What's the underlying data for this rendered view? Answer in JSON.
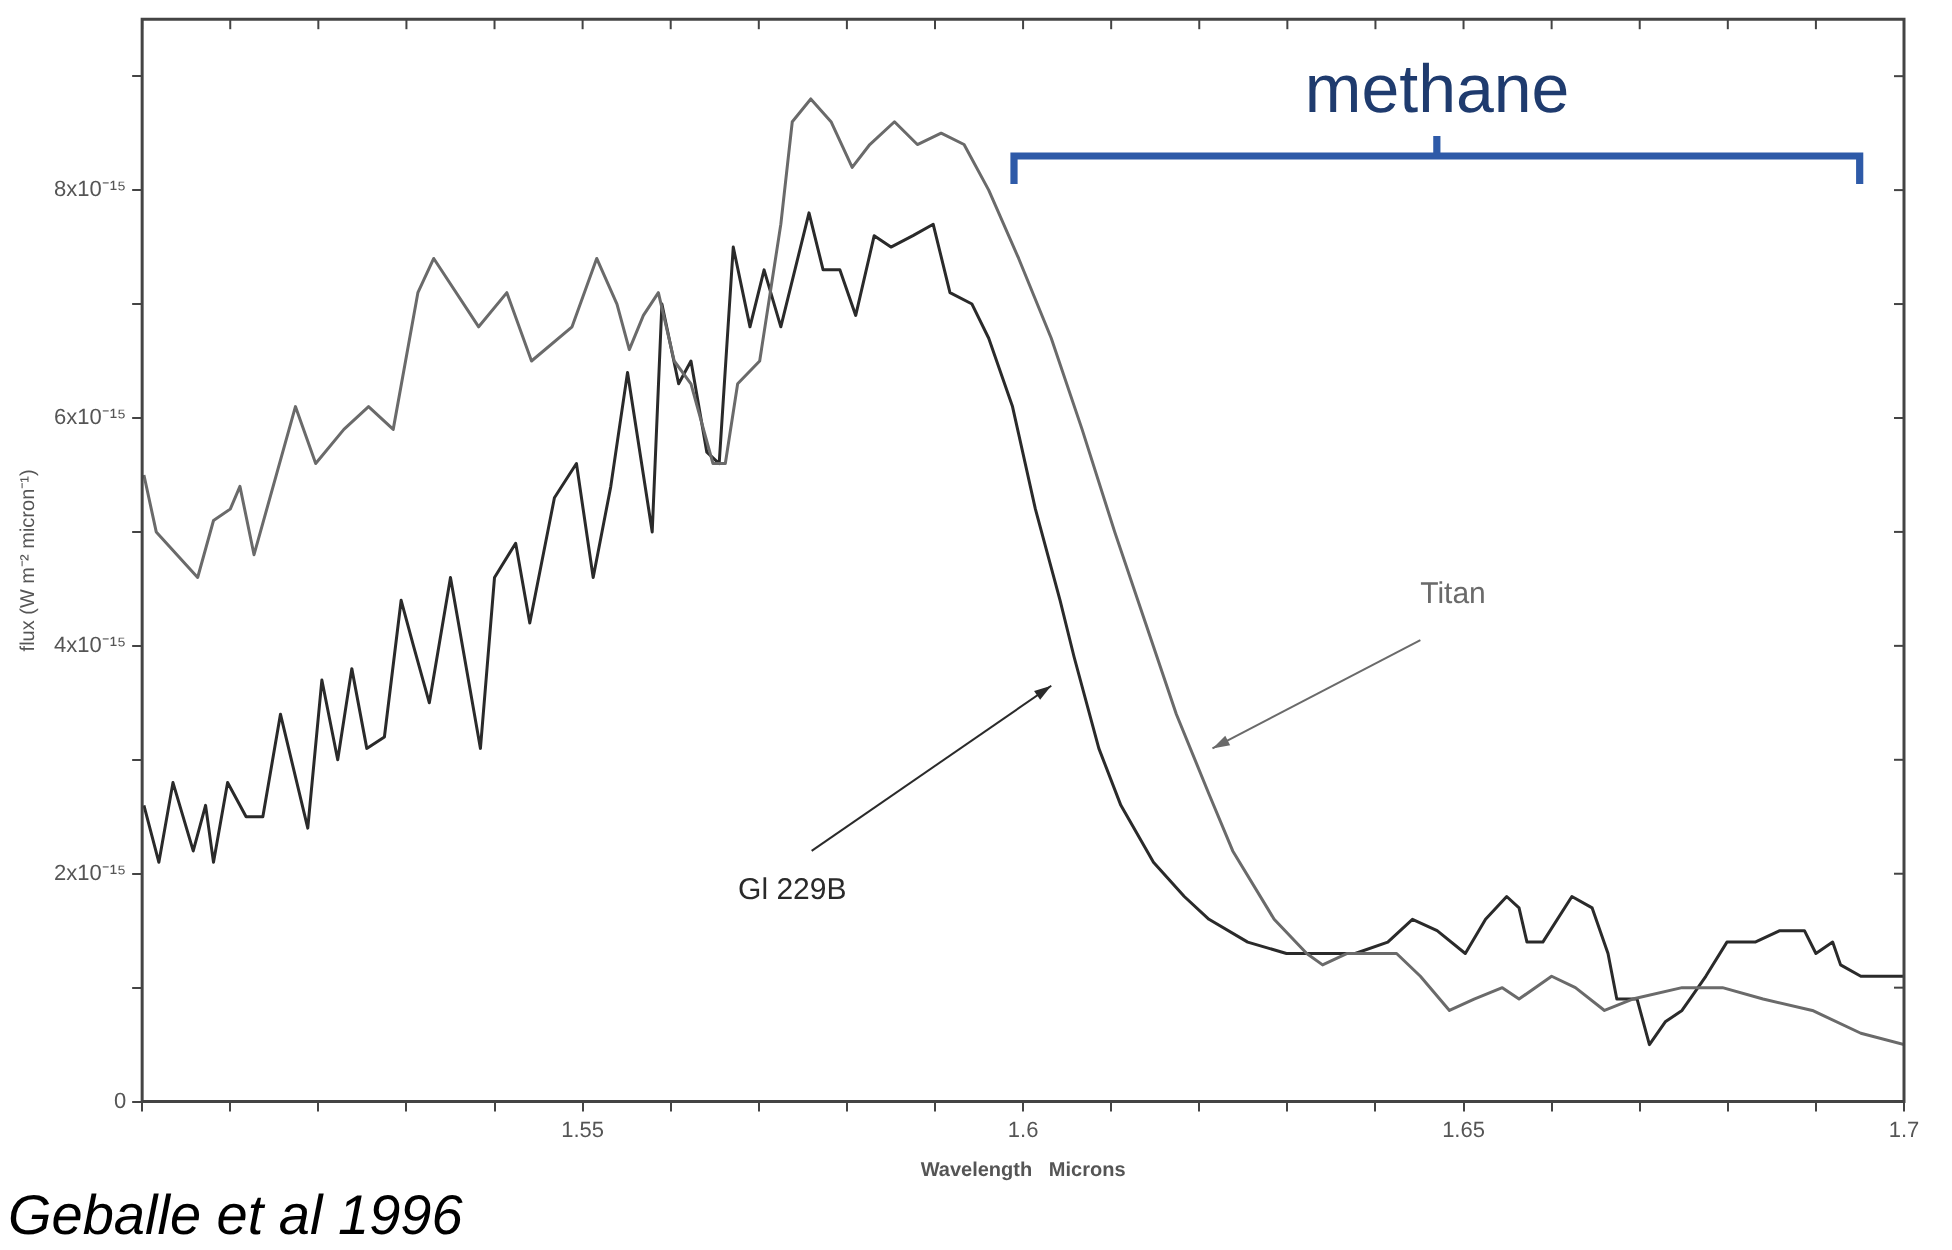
{
  "chart_data": {
    "type": "line",
    "xlabel": "Wavelength   Microns",
    "ylabel": "flux (W m⁻² micron⁻¹)",
    "xlim": [
      1.5,
      1.7
    ],
    "xticks": [
      {
        "value": 1.5,
        "label": null
      },
      {
        "value": 1.51,
        "label": null
      },
      {
        "value": 1.52,
        "label": null
      },
      {
        "value": 1.53,
        "label": null
      },
      {
        "value": 1.54,
        "label": null
      },
      1.55,
      {
        "value": 1.56,
        "label": null
      },
      {
        "value": 1.57,
        "label": null
      },
      {
        "value": 1.58,
        "label": null
      },
      {
        "value": 1.59,
        "label": null
      },
      1.6,
      {
        "value": 1.61,
        "label": null
      },
      {
        "value": 1.62,
        "label": null
      },
      {
        "value": 1.63,
        "label": null
      },
      {
        "value": 1.64,
        "label": null
      },
      1.65,
      {
        "value": 1.66,
        "label": null
      },
      {
        "value": 1.67,
        "label": null
      },
      {
        "value": 1.68,
        "label": null
      },
      {
        "value": 1.69,
        "label": null
      },
      1.7
    ],
    "ylim": [
      0,
      9.5e-15
    ],
    "yticks": [
      0,
      {
        "value": 1e-15,
        "label": null
      },
      {
        "value": 2e-15,
        "label": "2x10⁻¹⁵"
      },
      {
        "value": 3e-15,
        "label": null
      },
      {
        "value": 4e-15,
        "label": "4x10⁻¹⁵"
      },
      {
        "value": 5e-15,
        "label": null
      },
      {
        "value": 6e-15,
        "label": "6x10⁻¹⁵"
      },
      {
        "value": 7e-15,
        "label": null
      },
      {
        "value": 8e-15,
        "label": "8x10⁻¹⁵"
      },
      {
        "value": 9e-15,
        "label": null
      }
    ],
    "grid": false,
    "legend": false,
    "marker": "none",
    "line_style": "solid",
    "annotations": [
      "methane",
      "Geballe et al 1996"
    ],
    "series": [
      {
        "name": "Titan",
        "color": "#6a6a6a",
        "x": [
          1.5002,
          1.5016,
          1.5063,
          1.5081,
          1.51,
          1.5111,
          1.5127,
          1.5174,
          1.5197,
          1.5229,
          1.5257,
          1.5285,
          1.5313,
          1.5331,
          1.5382,
          1.5414,
          1.5442,
          1.5488,
          1.5516,
          1.5539,
          1.5553,
          1.5569,
          1.5586,
          1.5604,
          1.5623,
          1.5648,
          1.5662,
          1.5676,
          1.5701,
          1.5725,
          1.5738,
          1.5759,
          1.5782,
          1.5806,
          1.5826,
          1.5854,
          1.588,
          1.5907,
          1.5933,
          1.5961,
          1.5995,
          1.6032,
          1.6067,
          1.6104,
          1.6139,
          1.6174,
          1.6211,
          1.6238,
          1.6285,
          1.6322,
          1.634,
          1.6368,
          1.6424,
          1.6451,
          1.6484,
          1.6512,
          1.6544,
          1.6563,
          1.66,
          1.6627,
          1.666,
          1.6692,
          1.6748,
          1.6794,
          1.684,
          1.6896,
          1.6951,
          1.7
        ],
        "values": [
          5.5e-15,
          5e-15,
          4.6e-15,
          5.1e-15,
          5.2e-15,
          5.4e-15,
          4.8e-15,
          6.1e-15,
          5.6e-15,
          5.9e-15,
          6.1e-15,
          5.9e-15,
          7.1e-15,
          7.4e-15,
          6.8e-15,
          7.1e-15,
          6.5e-15,
          6.8e-15,
          7.4e-15,
          7e-15,
          6.6e-15,
          6.9e-15,
          7.1e-15,
          6.5e-15,
          6.3e-15,
          5.6e-15,
          5.6e-15,
          6.3e-15,
          6.5e-15,
          7.7e-15,
          8.6e-15,
          8.8e-15,
          8.6e-15,
          8.2e-15,
          8.4e-15,
          8.6e-15,
          8.4e-15,
          8.5e-15,
          8.4e-15,
          8e-15,
          7.4e-15,
          6.7e-15,
          5.9e-15,
          5e-15,
          4.2e-15,
          3.4e-15,
          2.7e-15,
          2.2e-15,
          1.6e-15,
          1.3e-15,
          1.2e-15,
          1.3e-15,
          1.3e-15,
          1.1e-15,
          8e-16,
          9e-16,
          1e-15,
          9e-16,
          1.1e-15,
          1e-15,
          8e-16,
          9e-16,
          1e-15,
          1e-15,
          9e-16,
          8e-16,
          6e-16,
          5e-16
        ]
      },
      {
        "name": "Gl 229B",
        "color": "#2a2a2a",
        "x": [
          1.5002,
          1.5019,
          1.5035,
          1.5058,
          1.5072,
          1.5081,
          1.5097,
          1.5118,
          1.5137,
          1.5157,
          1.5188,
          1.5204,
          1.5222,
          1.5238,
          1.5255,
          1.5275,
          1.5294,
          1.5308,
          1.5326,
          1.535,
          1.5384,
          1.54,
          1.5424,
          1.544,
          1.5468,
          1.5493,
          1.5512,
          1.5532,
          1.5551,
          1.5579,
          1.559,
          1.5609,
          1.5623,
          1.5641,
          1.5655,
          1.5671,
          1.569,
          1.5706,
          1.5725,
          1.5757,
          1.5773,
          1.5792,
          1.581,
          1.5831,
          1.585,
          1.5875,
          1.5898,
          1.5917,
          1.5942,
          1.5961,
          1.5988,
          1.6014,
          1.6042,
          1.6058,
          1.6086,
          1.6111,
          1.6148,
          1.6183,
          1.6211,
          1.6255,
          1.6299,
          1.6322,
          1.6377,
          1.6414,
          1.6442,
          1.647,
          1.6502,
          1.6525,
          1.6549,
          1.6563,
          1.6572,
          1.659,
          1.6623,
          1.6646,
          1.6664,
          1.6674,
          1.6697,
          1.6711,
          1.6729,
          1.6748,
          1.6757,
          1.6775,
          1.6799,
          1.6831,
          1.6859,
          1.6887,
          1.69,
          1.6919,
          1.6928,
          1.6951,
          1.7
        ],
        "values": [
          2.6e-15,
          2.1e-15,
          2.8e-15,
          2.2e-15,
          2.6e-15,
          2.1e-15,
          2.8e-15,
          2.5e-15,
          2.5e-15,
          3.4e-15,
          2.4e-15,
          3.7e-15,
          3e-15,
          3.8e-15,
          3.1e-15,
          3.2e-15,
          4.4e-15,
          4e-15,
          3.5e-15,
          4.6e-15,
          3.1e-15,
          4.6e-15,
          4.9e-15,
          4.2e-15,
          5.3e-15,
          5.6e-15,
          4.6e-15,
          5.4e-15,
          6.4e-15,
          5e-15,
          7e-15,
          6.3e-15,
          6.5e-15,
          5.7e-15,
          5.6e-15,
          7.5e-15,
          6.8e-15,
          7.3e-15,
          6.8e-15,
          7.8e-15,
          7.3e-15,
          7.3e-15,
          6.9e-15,
          7.6e-15,
          7.5e-15,
          7.6e-15,
          7.7e-15,
          7.1e-15,
          7e-15,
          6.7e-15,
          6.1e-15,
          5.2e-15,
          4.4e-15,
          3.9e-15,
          3.1e-15,
          2.6e-15,
          2.1e-15,
          1.8e-15,
          1.6e-15,
          1.4e-15,
          1.3e-15,
          1.3e-15,
          1.3e-15,
          1.4e-15,
          1.6e-15,
          1.5e-15,
          1.3e-15,
          1.6e-15,
          1.8e-15,
          1.7e-15,
          1.4e-15,
          1.4e-15,
          1.8e-15,
          1.7e-15,
          1.3e-15,
          9e-16,
          9e-16,
          5e-16,
          7e-16,
          8e-16,
          9e-16,
          1.1e-15,
          1.4e-15,
          1.4e-15,
          1.5e-15,
          1.5e-15,
          1.3e-15,
          1.4e-15,
          1.2e-15,
          1.1e-15,
          1.1e-15
        ]
      }
    ]
  }
}
